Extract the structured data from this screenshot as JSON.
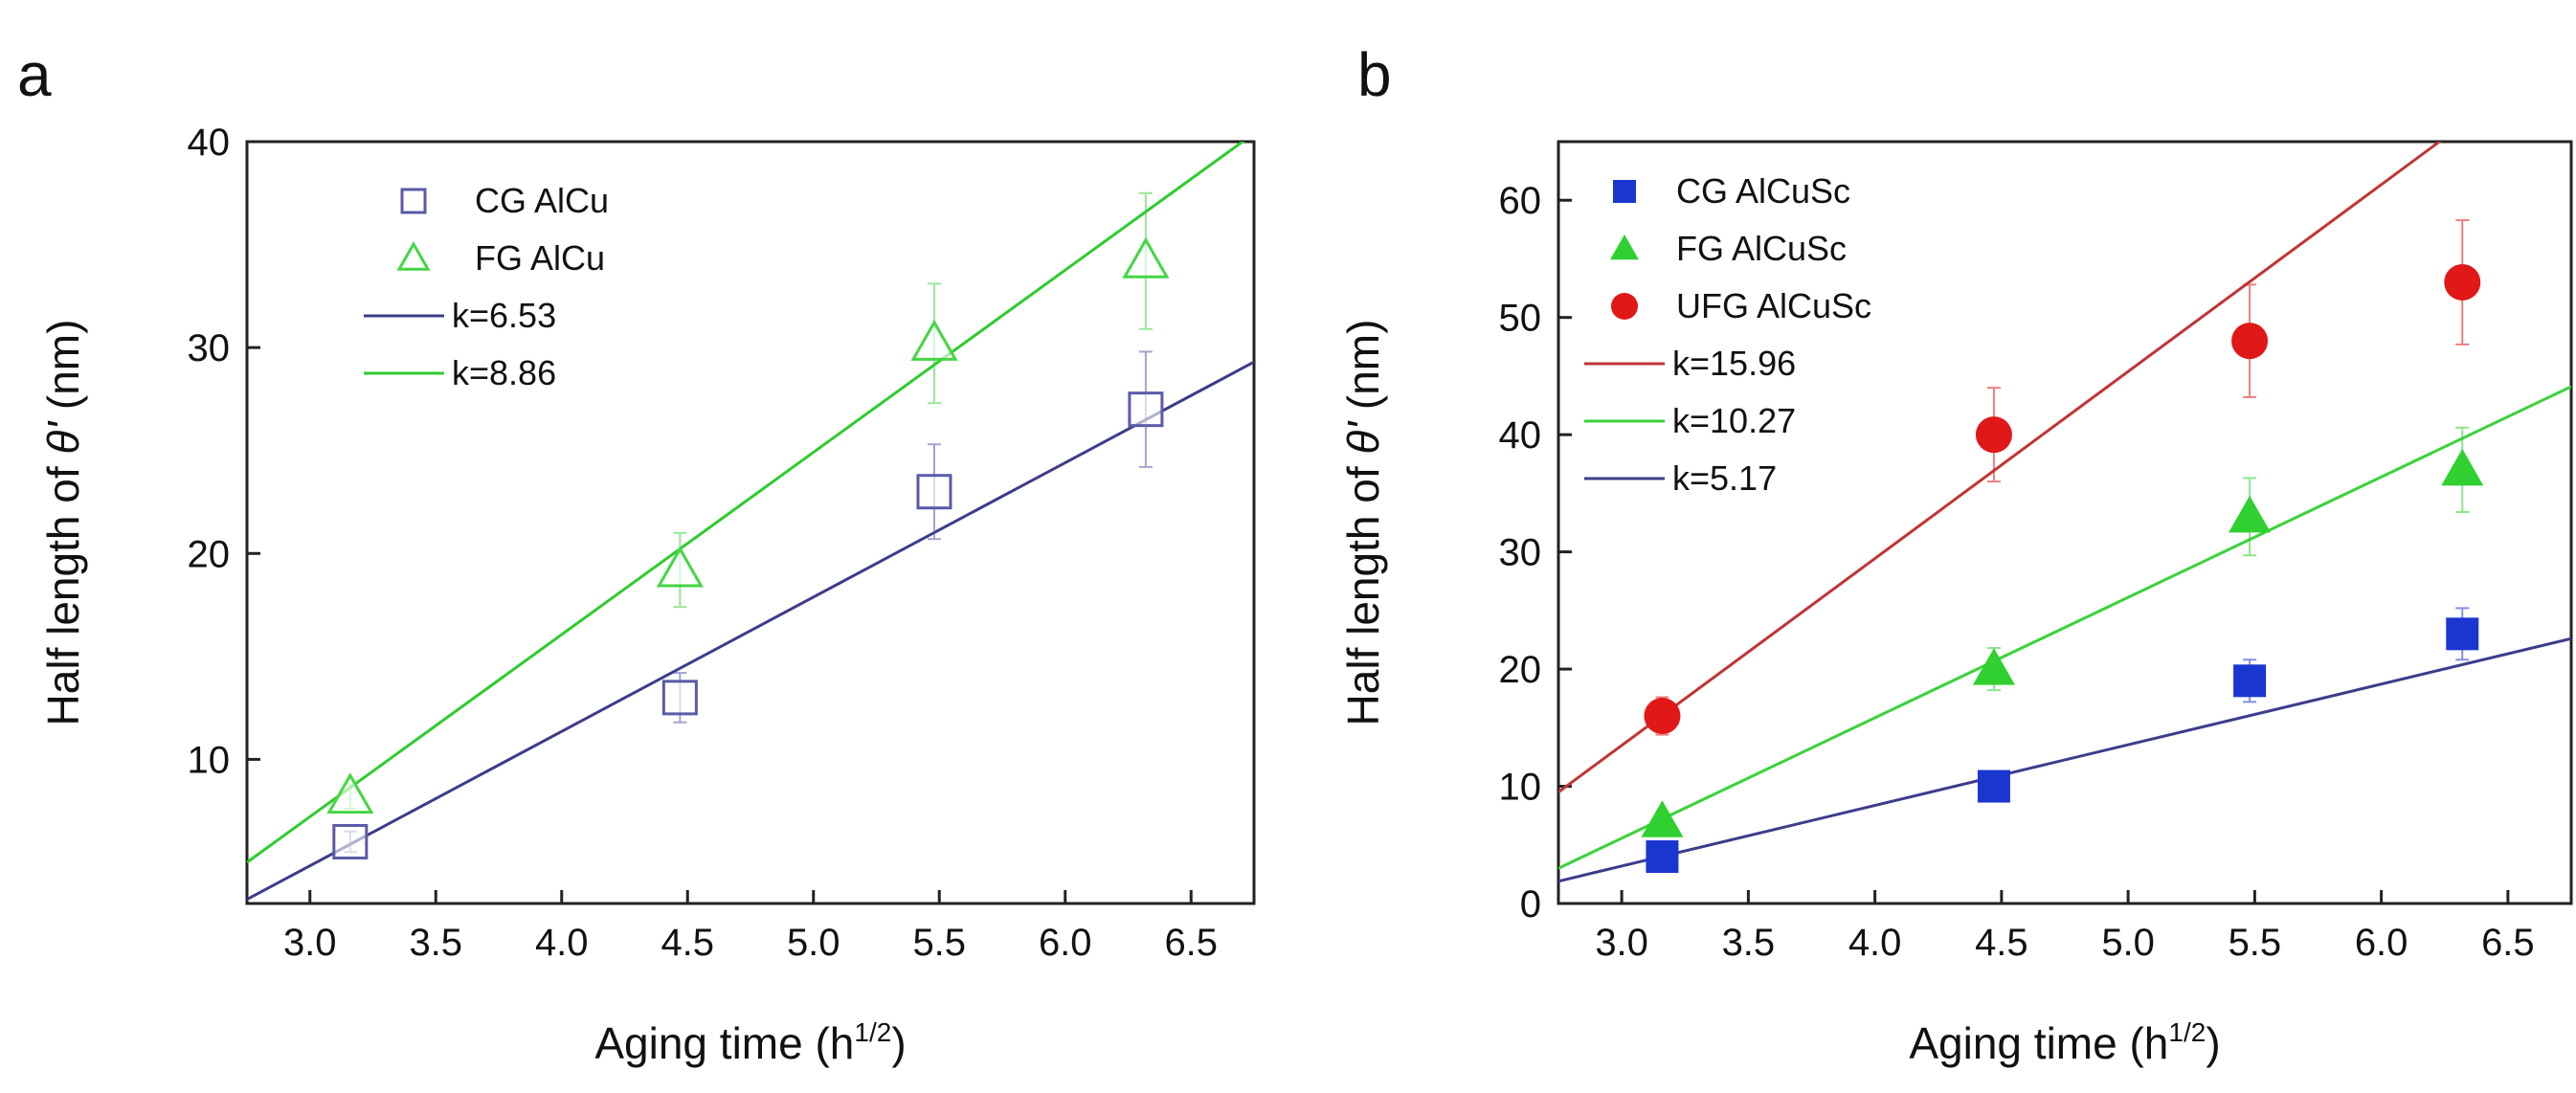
{
  "chart_data": [
    {
      "panel": "a",
      "type": "scatter",
      "xlabel": "Aging time (h",
      "xlabel_sup": "1/2",
      "xlabel_end": ")",
      "ylabel": "Half length of ",
      "ylabel_symbol": "θ'",
      "ylabel_unit": " (nm)",
      "xlim": [
        2.75,
        6.75
      ],
      "ylim": [
        3,
        40
      ],
      "xticks": [
        "3.0",
        "3.5",
        "4.0",
        "4.5",
        "5.0",
        "5.5",
        "6.0",
        "6.5"
      ],
      "yticks": [
        "10",
        "20",
        "30",
        "40"
      ],
      "series": [
        {
          "name": "CG AlCu",
          "marker": "square-open",
          "color": "#5a5aa8",
          "x": [
            3.16,
            4.47,
            5.48,
            6.32
          ],
          "y": [
            6,
            13,
            23,
            27
          ],
          "err": [
            0.5,
            1.2,
            2.3,
            2.8
          ]
        },
        {
          "name": "FG AlCu",
          "marker": "triangle-open",
          "color": "#45d545",
          "x": [
            3.16,
            4.47,
            5.48,
            6.32
          ],
          "y": [
            8.2,
            19.2,
            30.2,
            34.2
          ],
          "err": [
            0.6,
            1.8,
            2.9,
            3.3
          ]
        }
      ],
      "fits": [
        {
          "name": "k=6.53",
          "color": "#3c3c8c",
          "x": [
            2.75,
            6.75
          ],
          "y": [
            3.2,
            29.3
          ]
        },
        {
          "name": "k=8.86",
          "color": "#2ecc2e",
          "x": [
            2.75,
            6.75
          ],
          "y": [
            5.0,
            40.4
          ]
        }
      ]
    },
    {
      "panel": "b",
      "type": "scatter",
      "xlabel": "Aging time (h",
      "xlabel_sup": "1/2",
      "xlabel_end": ")",
      "ylabel": "Half length of ",
      "ylabel_symbol": "θ'",
      "ylabel_unit": " (nm)",
      "xlim": [
        2.75,
        6.75
      ],
      "ylim": [
        0,
        65
      ],
      "xticks": [
        "3.0",
        "3.5",
        "4.0",
        "4.5",
        "5.0",
        "5.5",
        "6.0",
        "6.5"
      ],
      "yticks": [
        "0",
        "10",
        "20",
        "30",
        "40",
        "50",
        "60"
      ],
      "series": [
        {
          "name": "CG AlCuSc",
          "marker": "square-filled",
          "color": "#1a36d0",
          "x": [
            3.16,
            4.47,
            5.48,
            6.32
          ],
          "y": [
            4,
            10,
            19,
            23
          ],
          "err": [
            0.6,
            1.0,
            1.8,
            2.2
          ]
        },
        {
          "name": "FG AlCuSc",
          "marker": "triangle-filled",
          "color": "#2fd02f",
          "x": [
            3.16,
            4.47,
            5.48,
            6.32
          ],
          "y": [
            7,
            20,
            33,
            37
          ],
          "err": [
            0.8,
            1.8,
            3.3,
            3.6
          ]
        },
        {
          "name": "UFG AlCuSc",
          "marker": "circle-filled",
          "color": "#e01818",
          "x": [
            3.16,
            4.47,
            5.48,
            6.32
          ],
          "y": [
            16,
            40,
            48,
            53
          ],
          "err": [
            1.6,
            4.0,
            4.8,
            5.3
          ]
        }
      ],
      "fits": [
        {
          "name": "k=15.96",
          "color": "#c03535",
          "x": [
            2.75,
            6.75
          ],
          "y": [
            9.5,
            73.3
          ]
        },
        {
          "name": "k=10.27",
          "color": "#3ad23a",
          "x": [
            2.75,
            6.75
          ],
          "y": [
            3.0,
            44.1
          ]
        },
        {
          "name": "k=5.17",
          "color": "#3c3c8c",
          "x": [
            2.75,
            6.75
          ],
          "y": [
            1.9,
            22.6
          ]
        }
      ]
    }
  ]
}
